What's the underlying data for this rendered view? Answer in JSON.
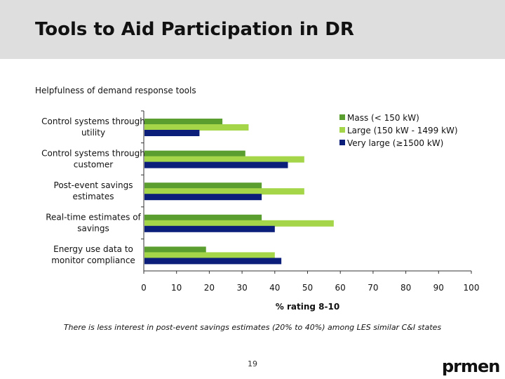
{
  "slide": {
    "title": "Tools to Aid Participation in DR",
    "caption": "There is less interest in post-event savings estimates (20% to 40%) among LES similar C&I states",
    "page_number": "19",
    "logo_text": "prmen"
  },
  "colors": {
    "header_bg": "#dedede",
    "mass": "#5a9e2f",
    "large": "#a5d64a",
    "very_large": "#0b1f7a",
    "logo_accent": "#2e8b2e"
  },
  "chart_data": {
    "type": "bar",
    "orientation": "horizontal",
    "title": "Helpfulness of demand response tools",
    "xlabel": "% rating 8-10",
    "ylabel": "",
    "xlim": [
      0,
      100
    ],
    "xticks": [
      "0",
      "10",
      "20",
      "30",
      "40",
      "50",
      "60",
      "70",
      "80",
      "90",
      "100"
    ],
    "legend_position": "top-right",
    "categories": [
      [
        "Control systems through",
        "utility"
      ],
      [
        "Control systems through",
        "customer"
      ],
      [
        "Post-event savings",
        "estimates"
      ],
      [
        "Real-time estimates of",
        "savings"
      ],
      [
        "Energy use data to",
        "monitor compliance"
      ]
    ],
    "series": [
      {
        "name": "Mass (< 150 kW)",
        "color": "#5a9e2f",
        "values": [
          24,
          31,
          36,
          36,
          19
        ]
      },
      {
        "name": "Large (150 kW - 1499 kW)",
        "color": "#a5d64a",
        "values": [
          32,
          49,
          49,
          58,
          40
        ]
      },
      {
        "name": "Very large (≥1500 kW)",
        "color": "#0b1f7a",
        "values": [
          17,
          44,
          36,
          40,
          42
        ]
      }
    ]
  }
}
